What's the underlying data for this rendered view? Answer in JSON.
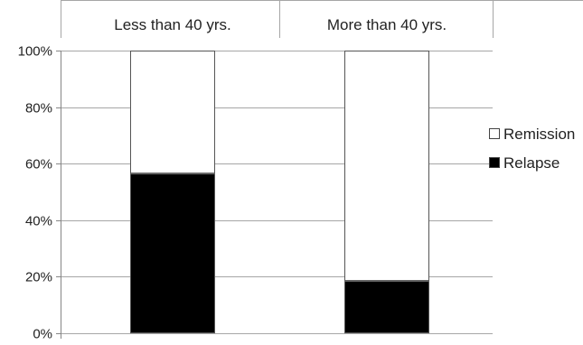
{
  "chart_data": {
    "type": "bar",
    "stacked": true,
    "normalized": true,
    "categories": [
      "Less than 40 yrs.",
      "More than 40 yrs."
    ],
    "category_labels_position": "top",
    "series": [
      {
        "name": "Relapse",
        "values": [
          56.5,
          18.5
        ],
        "color": "#000000"
      },
      {
        "name": "Remission",
        "values": [
          43.5,
          81.5
        ],
        "color": "#ffffff"
      }
    ],
    "yticks": [
      "0%",
      "20%",
      "40%",
      "60%",
      "80%",
      "100%"
    ],
    "ylim": [
      0,
      100
    ],
    "grid": true,
    "legend_position": "right",
    "legend": [
      {
        "name": "Remission",
        "color": "#ffffff"
      },
      {
        "name": "Relapse",
        "color": "#000000"
      }
    ]
  }
}
